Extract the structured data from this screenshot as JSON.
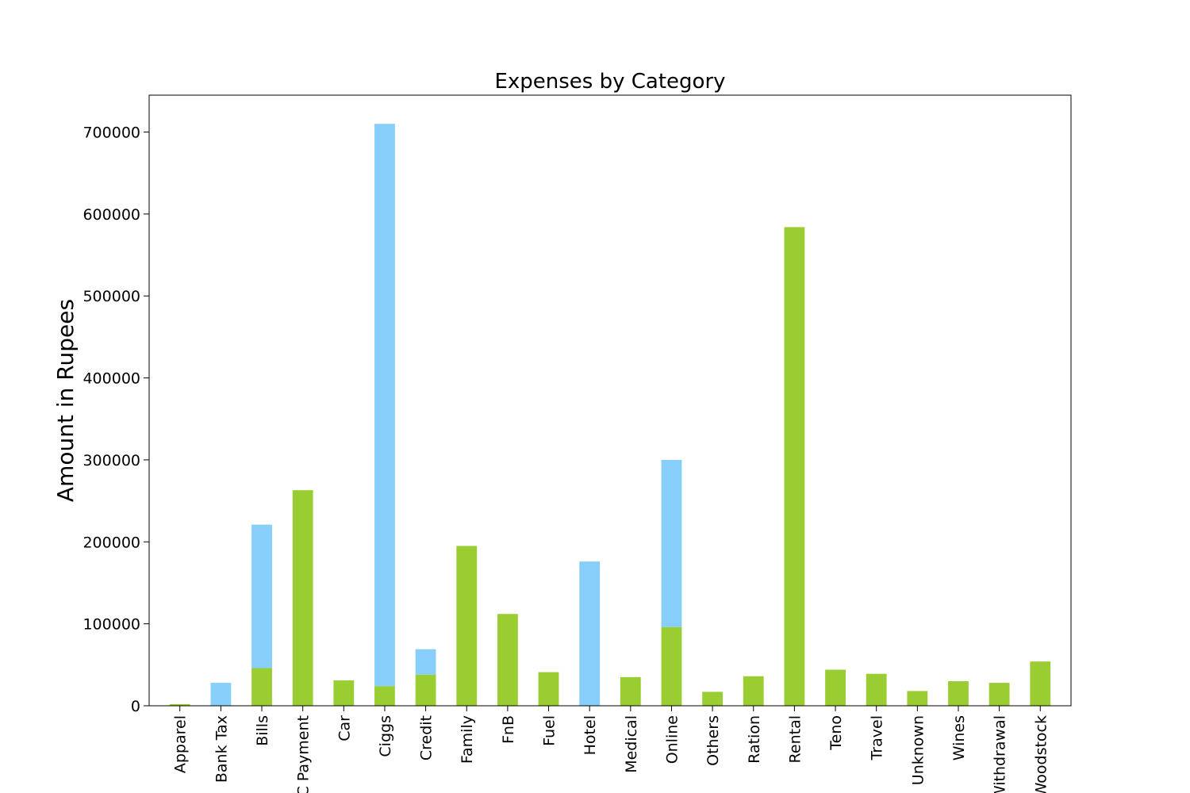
{
  "chart_data": {
    "type": "bar",
    "stacked": true,
    "title": "Expenses by Category",
    "xlabel": "",
    "ylabel": "Amount in Rupees",
    "ylim": [
      0,
      745000
    ],
    "yticks": [
      0,
      100000,
      200000,
      300000,
      400000,
      500000,
      600000,
      700000
    ],
    "grid": false,
    "legend": false,
    "categories": [
      "Apparel",
      "Bank Tax",
      "Bills",
      "CC Payment",
      "Car",
      "Ciggs",
      "Credit",
      "Family",
      "FnB",
      "Fuel",
      "Hotel",
      "Medical",
      "Online",
      "Others",
      "Ration",
      "Rental",
      "Teno",
      "Travel",
      "Unknown",
      "Wines",
      "Withdrawal",
      "Woodstock"
    ],
    "series": [
      {
        "color": "#9acd32",
        "values": [
          2000,
          0,
          46000,
          263000,
          31000,
          24000,
          38000,
          195000,
          112000,
          41000,
          0,
          35000,
          96000,
          17000,
          36000,
          584000,
          44000,
          39000,
          18000,
          30000,
          28000,
          54000
        ]
      },
      {
        "color": "#87cefa",
        "values": [
          0,
          28000,
          175000,
          0,
          0,
          686000,
          31000,
          0,
          0,
          0,
          176000,
          0,
          204000,
          0,
          0,
          0,
          0,
          0,
          0,
          0,
          0,
          0
        ]
      }
    ]
  }
}
